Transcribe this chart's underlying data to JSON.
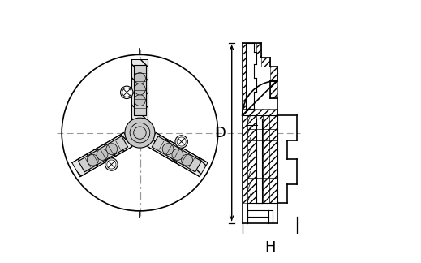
{
  "bg_color": "#ffffff",
  "line_color": "#000000",
  "dash_color": "#999999",
  "fig_width": 5.19,
  "fig_height": 3.24,
  "dpi": 100,
  "label_D": "D",
  "label_H": "H"
}
